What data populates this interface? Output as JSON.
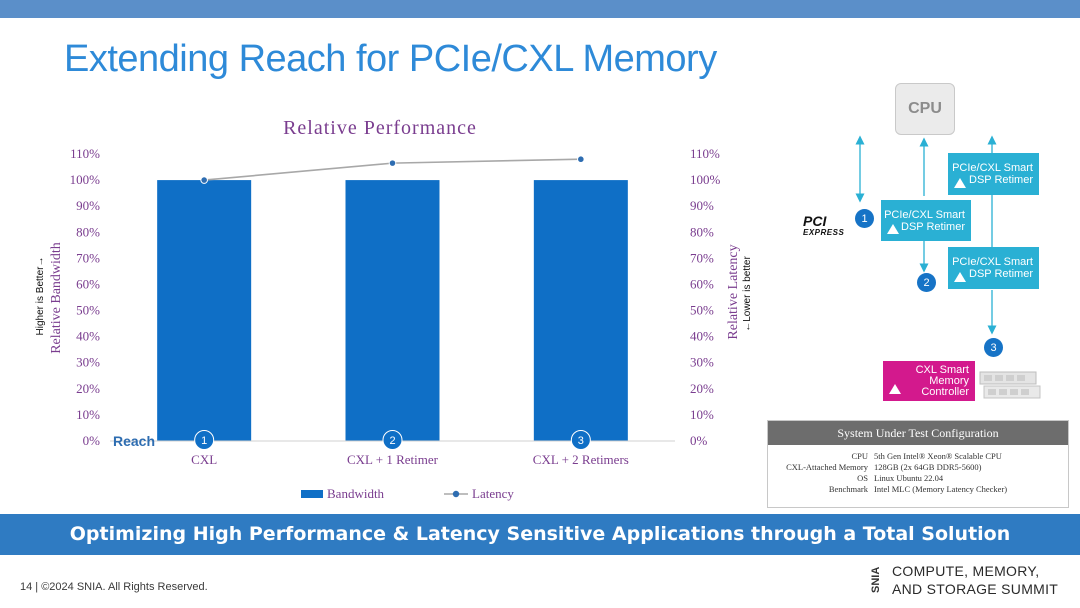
{
  "slide": {
    "title": "Extending Reach for PCIe/CXL Memory",
    "banner": "Optimizing High Performance & Latency Sensitive Applications through a Total Solution",
    "footer": "14 | ©2024 SNIA. All Rights Reserved.",
    "logo_line1": "COMPUTE, MEMORY,",
    "logo_line2": "AND STORAGE SUMMIT",
    "logo_mark": "SNIA"
  },
  "colors": {
    "bar": "#0f6fc6",
    "line": "#a8a8a8",
    "marker": "#2e6db1",
    "title_purple": "#7a3d8f",
    "axis_text": "#7a3d8f",
    "accent_blue": "#2e8ad8"
  },
  "chart_data": {
    "type": "bar",
    "title": "Relative Performance",
    "categories": [
      "CXL",
      "CXL + 1 Retimer",
      "CXL + 2 Retimers"
    ],
    "category_markers": [
      "1",
      "2",
      "3"
    ],
    "series": [
      {
        "name": "Bandwidth",
        "type": "bar",
        "axis": "left",
        "values": [
          100,
          100,
          100
        ]
      },
      {
        "name": "Latency",
        "type": "line",
        "axis": "right",
        "values": [
          100,
          106.5,
          108
        ]
      }
    ],
    "ylabel_left": "Relative Bandwidth",
    "ylabel_left_note": "Higher is Better→",
    "ylabel_right": "Relative Latency",
    "ylabel_right_note": "←Lower is better",
    "ylim": [
      0,
      110
    ],
    "yticks": [
      "0%",
      "10%",
      "20%",
      "30%",
      "40%",
      "50%",
      "60%",
      "70%",
      "80%",
      "90%",
      "100%",
      "110%"
    ],
    "reach_label": "Reach",
    "legend_position": "bottom",
    "grid": false
  },
  "diagram": {
    "cpu": "CPU",
    "pci_logo": "PCI",
    "pci_logo_sub": "EXPRESS",
    "retimer1_line1": "PCIe/CXL Smart",
    "retimer1_line2": "DSP Retimer",
    "retimer2_line1": "PCIe/CXL Smart",
    "retimer2_line2": "DSP Retimer",
    "retimer3_line1": "PCIe/CXL Smart",
    "retimer3_line2": "DSP Retimer",
    "controller_line1": "CXL Smart",
    "controller_line2": "Memory",
    "controller_line3": "Controller",
    "step1": "1",
    "step2": "2",
    "step3": "3"
  },
  "sut": {
    "header": "System Under Test Configuration",
    "rows": [
      {
        "k": "CPU",
        "v": "5th Gen Intel® Xeon® Scalable CPU"
      },
      {
        "k": "CXL-Attached Memory",
        "v": "128GB (2x 64GB DDR5-5600)"
      },
      {
        "k": "OS",
        "v": "Linux Ubuntu 22.04"
      },
      {
        "k": "Benchmark",
        "v": "Intel MLC (Memory Latency Checker)"
      }
    ]
  }
}
